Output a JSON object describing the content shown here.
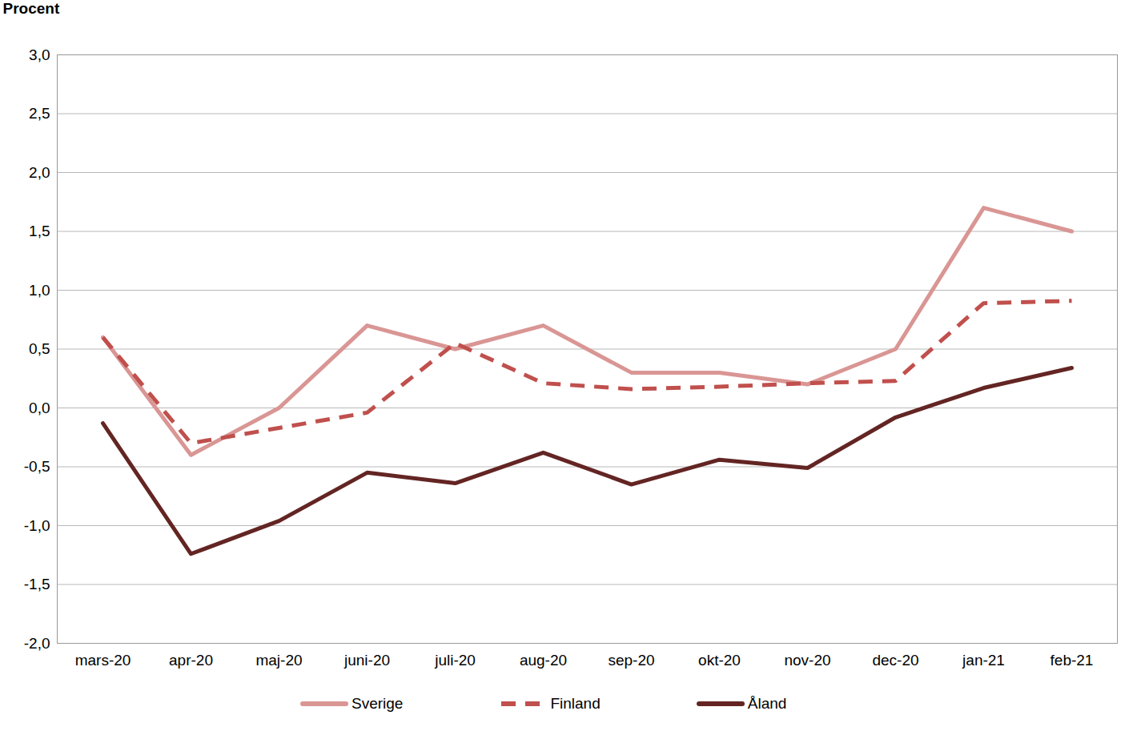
{
  "chart_data": {
    "type": "line",
    "y_label": "Procent",
    "categories": [
      "mars-20",
      "apr-20",
      "maj-20",
      "juni-20",
      "juli-20",
      "aug-20",
      "sep-20",
      "okt-20",
      "nov-20",
      "dec-20",
      "jan-21",
      "feb-21"
    ],
    "series": [
      {
        "name": "Sverige",
        "color": "#d99694",
        "line_style": "solid",
        "values": [
          0.6,
          -0.4,
          0.0,
          0.7,
          0.5,
          0.7,
          0.3,
          0.3,
          0.2,
          0.5,
          1.7,
          1.5
        ]
      },
      {
        "name": "Finland",
        "color": "#c0504d",
        "line_style": "dashed",
        "values": [
          0.6,
          -0.3,
          -0.17,
          -0.04,
          0.55,
          0.21,
          0.16,
          0.18,
          0.21,
          0.23,
          0.89,
          0.91
        ]
      },
      {
        "name": "Åland",
        "color": "#632523",
        "line_style": "solid",
        "values": [
          -0.13,
          -1.24,
          -0.96,
          -0.55,
          -0.64,
          -0.38,
          -0.65,
          -0.44,
          -0.51,
          -0.08,
          0.17,
          0.34
        ]
      }
    ],
    "ylim": [
      -2.0,
      3.0
    ],
    "yticks": [
      {
        "value": -2.0,
        "label": "-2,0"
      },
      {
        "value": -1.5,
        "label": "-1,5"
      },
      {
        "value": -1.0,
        "label": "-1,0"
      },
      {
        "value": -0.5,
        "label": "-0,5"
      },
      {
        "value": 0.0,
        "label": "0,0"
      },
      {
        "value": 0.5,
        "label": "0,5"
      },
      {
        "value": 1.0,
        "label": "1,0"
      },
      {
        "value": 1.5,
        "label": "1,5"
      },
      {
        "value": 2.0,
        "label": "2,0"
      },
      {
        "value": 2.5,
        "label": "2,5"
      },
      {
        "value": 3.0,
        "label": "3,0"
      }
    ],
    "grid": true,
    "legend": "bottom"
  }
}
